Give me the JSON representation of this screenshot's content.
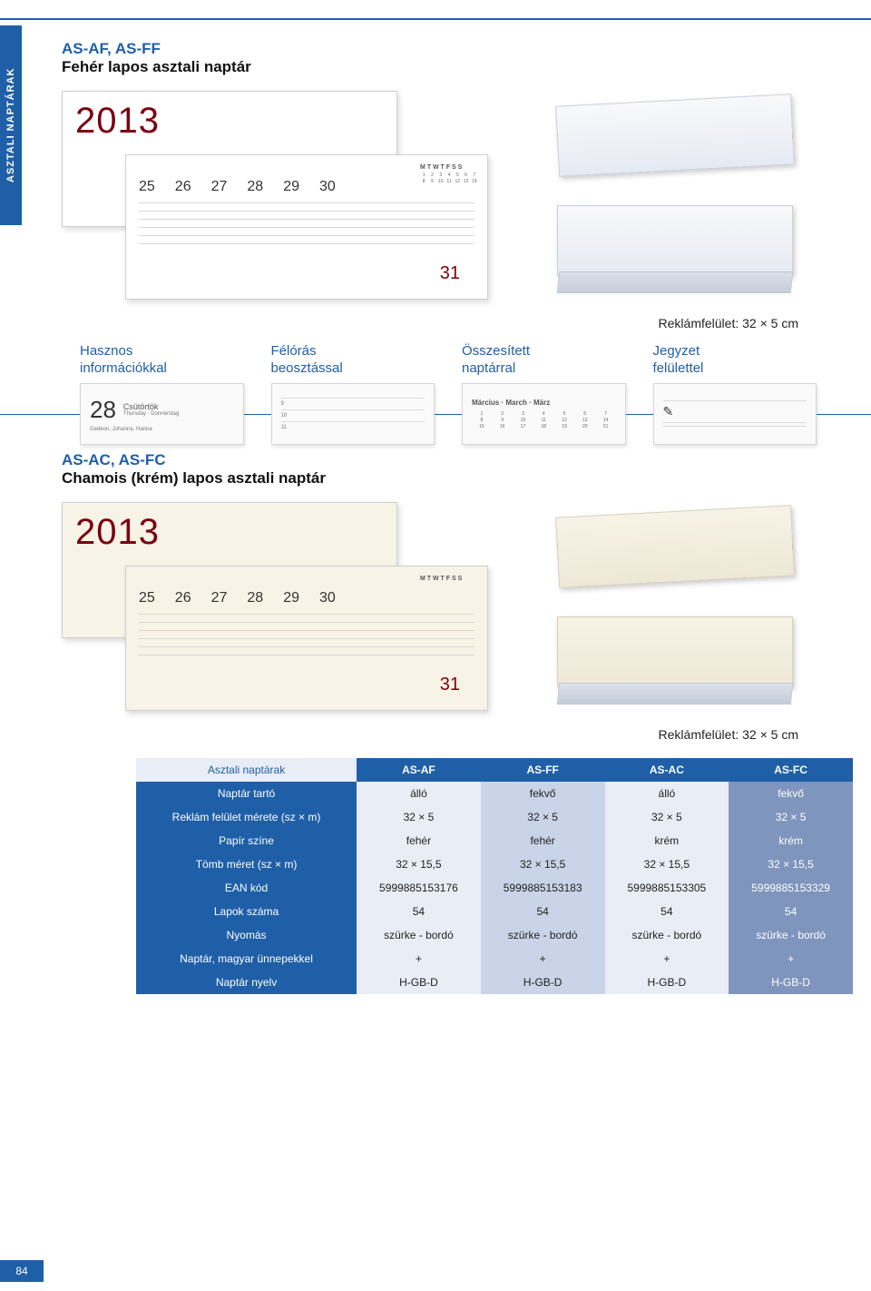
{
  "page_number": "84",
  "side_tab": "ASZTALI NAPTÁRAK",
  "colors": {
    "brand": "#1f5fa8",
    "accent_red": "#7a0010",
    "table_header_bg": "#1f5fa8",
    "table_rowlabel_bg": "#1f5fa8",
    "table_cell_light": "#e9edf5",
    "table_cell_mid": "#c9d4e8",
    "table_cell_dark": "#7f95bd"
  },
  "section1": {
    "code": "AS-AF, AS-FF",
    "title": "Fehér lapos asztali naptár",
    "year": "2013",
    "days": [
      "25",
      "26",
      "27",
      "28",
      "29",
      "30"
    ],
    "extra_day": "31",
    "reklam": "Reklámfelület: 32 × 5 cm"
  },
  "features": [
    {
      "line1": "Hasznos",
      "line2": "információkkal",
      "img": {
        "big": "28",
        "cap": "Csütörtök",
        "sub": "Thursday · Donnerstag",
        "names": "Gedeon, Johanna, Hanna"
      }
    },
    {
      "line1": "Félórás",
      "line2": "beosztással",
      "img": {
        "marks": [
          "9",
          "10",
          "11"
        ]
      }
    },
    {
      "line1": "Összesített",
      "line2": "naptárral",
      "img": {
        "cap": "Március · March · März"
      }
    },
    {
      "line1": "Jegyzet",
      "line2": "felülettel",
      "img": {
        "pencil": "✎"
      }
    }
  ],
  "section2": {
    "code": "AS-AC, AS-FC",
    "title": "Chamois (krém) lapos asztali naptár",
    "year": "2013",
    "days": [
      "25",
      "26",
      "27",
      "28",
      "29",
      "30"
    ],
    "extra_day": "31",
    "reklam": "Reklámfelület: 32 × 5 cm"
  },
  "spec_table": {
    "header_left": "Asztali naptárak",
    "columns": [
      "AS-AF",
      "AS-FF",
      "AS-AC",
      "AS-FC"
    ],
    "rows": [
      {
        "label": "Naptár tartó",
        "cells": [
          "álló",
          "fekvő",
          "álló",
          "fekvő"
        ]
      },
      {
        "label": "Reklám felület mérete (sz × m)",
        "cells": [
          "32 × 5",
          "32 × 5",
          "32 × 5",
          "32 × 5"
        ]
      },
      {
        "label": "Papír színe",
        "cells": [
          "fehér",
          "fehér",
          "krém",
          "krém"
        ]
      },
      {
        "label": "Tömb méret (sz × m)",
        "cells": [
          "32 × 15,5",
          "32 × 15,5",
          "32 × 15,5",
          "32 × 15,5"
        ]
      },
      {
        "label": "EAN kód",
        "cells": [
          "5999885153176",
          "5999885153183",
          "5999885153305",
          "5999885153329"
        ]
      },
      {
        "label": "Lapok száma",
        "cells": [
          "54",
          "54",
          "54",
          "54"
        ]
      },
      {
        "label": "Nyomás",
        "cells": [
          "szürke - bordó",
          "szürke - bordó",
          "szürke - bordó",
          "szürke - bordó"
        ]
      },
      {
        "label": "Naptár, magyar ünnepekkel",
        "cells": [
          "+",
          "+",
          "+",
          "+"
        ]
      },
      {
        "label": "Naptár nyelv",
        "cells": [
          "H-GB-D",
          "H-GB-D",
          "H-GB-D",
          "H-GB-D"
        ]
      }
    ],
    "cell_shade_pattern": [
      "c-lt",
      "c-md",
      "c-lt",
      "c-dk"
    ]
  }
}
